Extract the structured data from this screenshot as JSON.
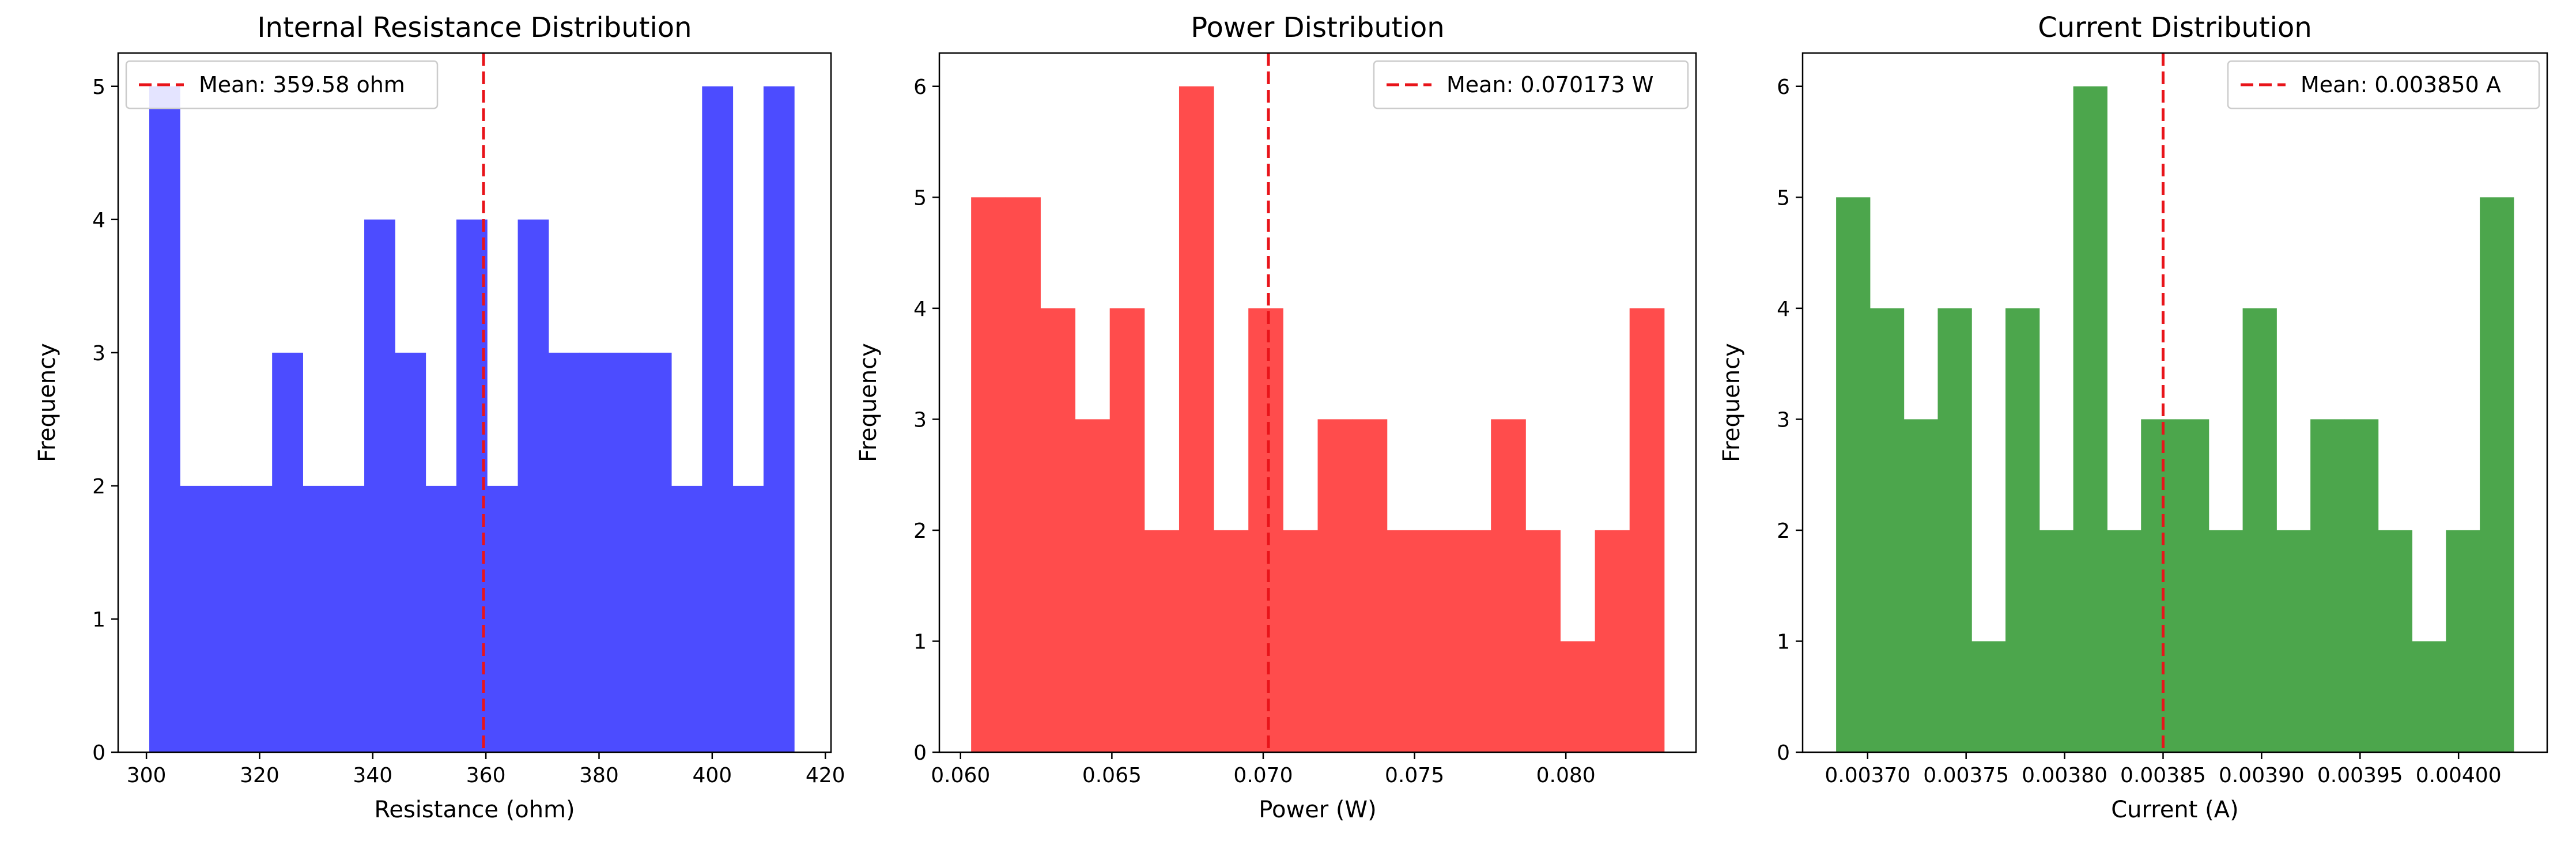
{
  "chart_data": [
    {
      "type": "bar",
      "title": "Internal Resistance Distribution",
      "xlabel": "Resistance (ohm)",
      "ylabel": "Frequency",
      "xlim": [
        295,
        421
      ],
      "ylim": [
        0,
        5.25
      ],
      "xticks": [
        300,
        320,
        340,
        360,
        380,
        400,
        420
      ],
      "xtick_labels": [
        "300",
        "320",
        "340",
        "360",
        "380",
        "400",
        "420"
      ],
      "yticks": [
        0,
        1,
        2,
        3,
        4,
        5
      ],
      "ytick_labels": [
        "0",
        "1",
        "2",
        "3",
        "4",
        "5"
      ],
      "bin_start": 300.5,
      "bin_end": 414.5,
      "counts": [
        5,
        2,
        2,
        2,
        3,
        2,
        2,
        4,
        3,
        2,
        4,
        2,
        4,
        3,
        3,
        3,
        3,
        2,
        5,
        2,
        5
      ],
      "color": "#4c4cff",
      "mean_value": 359.58,
      "mean_label": "Mean: 359.58 ohm",
      "legend_position": "upper left",
      "grid": false
    },
    {
      "type": "bar",
      "title": "Power Distribution",
      "xlabel": "Power (W)",
      "ylabel": "Frequency",
      "xlim": [
        0.0593,
        0.0843
      ],
      "ylim": [
        0,
        6.3
      ],
      "xticks": [
        0.06,
        0.065,
        0.07,
        0.075,
        0.08
      ],
      "xtick_labels": [
        "0.060",
        "0.065",
        "0.070",
        "0.075",
        "0.080"
      ],
      "yticks": [
        0,
        1,
        2,
        3,
        4,
        5,
        6
      ],
      "ytick_labels": [
        "0",
        "1",
        "2",
        "3",
        "4",
        "5",
        "6"
      ],
      "bin_start": 0.06035,
      "bin_end": 0.08325,
      "counts": [
        5,
        5,
        4,
        3,
        4,
        2,
        6,
        2,
        4,
        2,
        3,
        3,
        2,
        2,
        2,
        3,
        2,
        1,
        2,
        4
      ],
      "color": "#ff4c4c",
      "mean_value": 0.070173,
      "mean_label": "Mean: 0.070173 W",
      "legend_position": "upper right",
      "grid": false
    },
    {
      "type": "bar",
      "title": "Current Distribution",
      "xlabel": "Current (A)",
      "ylabel": "Frequency",
      "xlim": [
        0.003667,
        0.004045
      ],
      "ylim": [
        0,
        6.3
      ],
      "xticks": [
        0.0037,
        0.00375,
        0.0038,
        0.00385,
        0.0039,
        0.00395,
        0.004
      ],
      "xtick_labels": [
        "0.00370",
        "0.00375",
        "0.00380",
        "0.00385",
        "0.00390",
        "0.00395",
        "0.00400"
      ],
      "yticks": [
        0,
        1,
        2,
        3,
        4,
        5,
        6
      ],
      "ytick_labels": [
        "0",
        "1",
        "2",
        "3",
        "4",
        "5",
        "6"
      ],
      "bin_start": 0.003684,
      "bin_end": 0.004028,
      "counts": [
        5,
        4,
        3,
        4,
        1,
        4,
        2,
        6,
        2,
        3,
        3,
        2,
        4,
        2,
        3,
        3,
        2,
        1,
        2,
        5
      ],
      "color": "#4ca64c",
      "mean_value": 0.00385,
      "mean_label": "Mean: 0.003850 A",
      "legend_position": "upper right",
      "grid": false
    }
  ]
}
